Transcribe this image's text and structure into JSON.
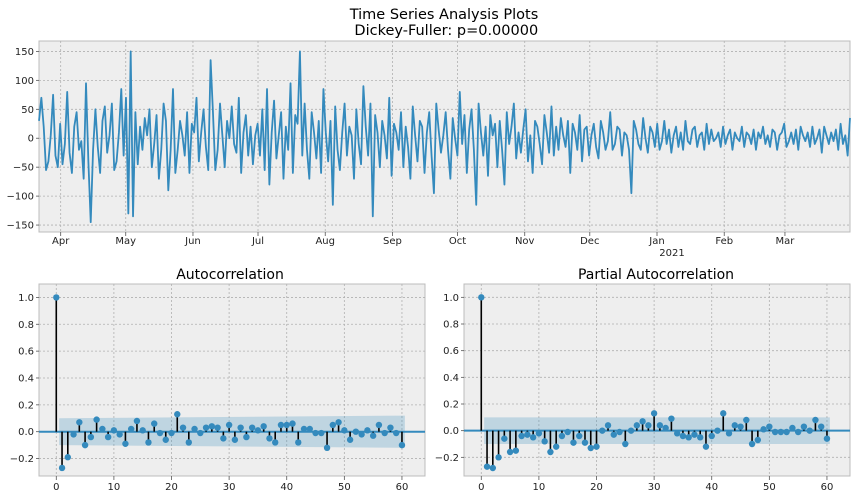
{
  "chart_data": [
    {
      "type": "line",
      "title": "Time Series Analysis Plots",
      "subtitle": " Dickey-Fuller: p=0.00000",
      "xlabel": "",
      "ylabel": "",
      "ylim": [
        -162,
        168
      ],
      "yticks": [
        -150,
        -100,
        -50,
        0,
        50,
        100,
        150
      ],
      "xtick_labels": [
        "Apr",
        "May",
        "Jun",
        "Jul",
        "Aug",
        "Sep",
        "Oct",
        "Nov",
        "Dec",
        "Jan",
        "Feb",
        "Mar"
      ],
      "xtick_sublabel": "2021",
      "grid": true,
      "series": [
        {
          "color": "#348abd",
          "x_start": "2020-03-22",
          "x_end": "2021-03-31",
          "values": [
            30,
            70,
            20,
            -55,
            -40,
            5,
            75,
            -30,
            -50,
            25,
            -45,
            -10,
            80,
            -25,
            -60,
            20,
            45,
            -20,
            -5,
            -70,
            95,
            -40,
            -145,
            -20,
            50,
            -15,
            -60,
            30,
            55,
            -25,
            5,
            60,
            -55,
            -40,
            10,
            85,
            -30,
            70,
            -130,
            150,
            -135,
            45,
            -45,
            20,
            -20,
            35,
            5,
            50,
            -50,
            -10,
            40,
            -70,
            -20,
            60,
            30,
            -90,
            -20,
            85,
            -60,
            -20,
            30,
            5,
            -30,
            45,
            -60,
            25,
            10,
            70,
            -40,
            10,
            50,
            -15,
            -55,
            135,
            45,
            -55,
            -20,
            60,
            5,
            -50,
            30,
            0,
            55,
            -10,
            -25,
            70,
            -60,
            10,
            40,
            -30,
            20,
            -45,
            5,
            25,
            -30,
            50,
            -55,
            85,
            -80,
            10,
            65,
            -35,
            5,
            45,
            -70,
            20,
            -20,
            95,
            -60,
            40,
            25,
            150,
            -30,
            60,
            -20,
            -70,
            45,
            10,
            -35,
            30,
            -60,
            85,
            10,
            -40,
            30,
            -115,
            55,
            -20,
            -55,
            10,
            60,
            -30,
            20,
            5,
            -70,
            50,
            -10,
            -45,
            90,
            20,
            -30,
            60,
            -135,
            40,
            10,
            -50,
            30,
            5,
            -35,
            70,
            -65,
            25,
            10,
            -20,
            45,
            -50,
            20,
            -15,
            -70,
            55,
            5,
            -40,
            30,
            20,
            -60,
            10,
            45,
            -30,
            -95,
            60,
            15,
            -25,
            5,
            45,
            -20,
            -70,
            35,
            0,
            -30,
            80,
            -10,
            40,
            -60,
            15,
            50,
            -20,
            -115,
            60,
            10,
            -30,
            20,
            -65,
            40,
            5,
            25,
            -50,
            30,
            -20,
            -80,
            45,
            -10,
            20,
            60,
            -35,
            10,
            -25,
            15,
            50,
            -40,
            5,
            -60,
            30,
            20,
            -10,
            -45,
            40,
            10,
            -25,
            55,
            -30,
            20,
            -20,
            35,
            5,
            -15,
            30,
            -60,
            25,
            10,
            -20,
            40,
            -40,
            15,
            20,
            -30,
            5,
            25,
            -15,
            -35,
            30,
            10,
            -20,
            -5,
            45,
            -20,
            -10,
            20,
            15,
            -30,
            10,
            5,
            -20,
            -95,
            30,
            15,
            -10,
            -20,
            35,
            0,
            -25,
            20,
            10,
            -15,
            25,
            -20,
            -5,
            30,
            -10,
            15,
            -25,
            5,
            20,
            -15,
            10,
            -20,
            30,
            -5,
            -10,
            15,
            20,
            -15,
            5,
            10,
            -20,
            25,
            -10,
            15,
            -5,
            0,
            10,
            -15,
            20,
            -10,
            5,
            15,
            -20,
            10,
            0,
            -5,
            20,
            -15,
            10,
            5,
            -10,
            15,
            -20,
            10,
            0,
            20,
            -10,
            5,
            -15,
            15,
            10,
            -20,
            5,
            10,
            25,
            -15,
            -5,
            10,
            -10,
            15,
            -20,
            20,
            5,
            -5,
            10,
            -15,
            20,
            -10,
            0,
            15,
            -25,
            20,
            5,
            -10,
            10,
            -5,
            15,
            -20,
            25,
            -10,
            5,
            -30,
            35
          ]
        }
      ]
    },
    {
      "type": "stem",
      "title": "Autocorrelation",
      "xlabel": "",
      "ylabel": "",
      "xlim": [
        -3,
        64
      ],
      "ylim": [
        -0.33,
        1.1
      ],
      "xticks": [
        0,
        10,
        20,
        30,
        40,
        50,
        60
      ],
      "yticks": [
        -0.2,
        0.0,
        0.2,
        0.4,
        0.6,
        0.8,
        1.0
      ],
      "grid": true,
      "confidence_band": {
        "start": [
          1,
          0.1
        ],
        "end": [
          60,
          0.12
        ],
        "color": "#348abd"
      },
      "series": [
        {
          "color": "#348abd",
          "values": [
            1.0,
            -0.27,
            -0.19,
            -0.02,
            0.07,
            -0.1,
            -0.04,
            0.09,
            0.02,
            -0.04,
            0.01,
            -0.02,
            -0.09,
            0.02,
            0.08,
            0.01,
            -0.08,
            0.06,
            -0.01,
            -0.06,
            -0.01,
            0.13,
            0.03,
            -0.08,
            0.02,
            -0.01,
            0.03,
            0.04,
            0.03,
            -0.05,
            0.05,
            -0.06,
            0.03,
            -0.04,
            0.03,
            0.01,
            0.04,
            -0.05,
            -0.08,
            0.05,
            0.05,
            0.06,
            -0.08,
            0.02,
            0.02,
            -0.01,
            -0.01,
            -0.12,
            0.05,
            0.07,
            0.01,
            -0.06,
            0.0,
            -0.02,
            0.01,
            -0.03,
            0.05,
            -0.01,
            0.03,
            -0.01,
            -0.1
          ]
        }
      ]
    },
    {
      "type": "stem",
      "title": "Partial Autocorrelation",
      "xlabel": "",
      "ylabel": "",
      "xlim": [
        -3,
        64
      ],
      "ylim": [
        -0.34,
        1.1
      ],
      "xticks": [
        0,
        10,
        20,
        30,
        40,
        50,
        60
      ],
      "yticks": [
        -0.2,
        0.0,
        0.2,
        0.4,
        0.6,
        0.8,
        1.0
      ],
      "grid": true,
      "confidence_band": {
        "start": [
          1,
          0.1
        ],
        "end": [
          60,
          0.1
        ],
        "color": "#348abd"
      },
      "series": [
        {
          "color": "#348abd",
          "values": [
            1.0,
            -0.27,
            -0.28,
            -0.2,
            -0.06,
            -0.16,
            -0.15,
            -0.04,
            -0.03,
            -0.05,
            -0.02,
            -0.08,
            -0.16,
            -0.12,
            -0.04,
            -0.01,
            -0.09,
            -0.04,
            -0.09,
            -0.13,
            -0.12,
            0.0,
            0.04,
            -0.03,
            -0.01,
            -0.1,
            0.0,
            0.04,
            0.07,
            0.04,
            0.13,
            0.04,
            0.02,
            0.09,
            -0.02,
            -0.04,
            -0.05,
            -0.03,
            -0.05,
            -0.12,
            -0.04,
            0.0,
            0.13,
            -0.02,
            0.04,
            0.03,
            0.08,
            -0.1,
            -0.07,
            0.01,
            0.03,
            -0.01,
            -0.01,
            -0.01,
            0.02,
            -0.01,
            0.03,
            0.0,
            0.08,
            0.03,
            -0.06
          ]
        }
      ]
    }
  ]
}
